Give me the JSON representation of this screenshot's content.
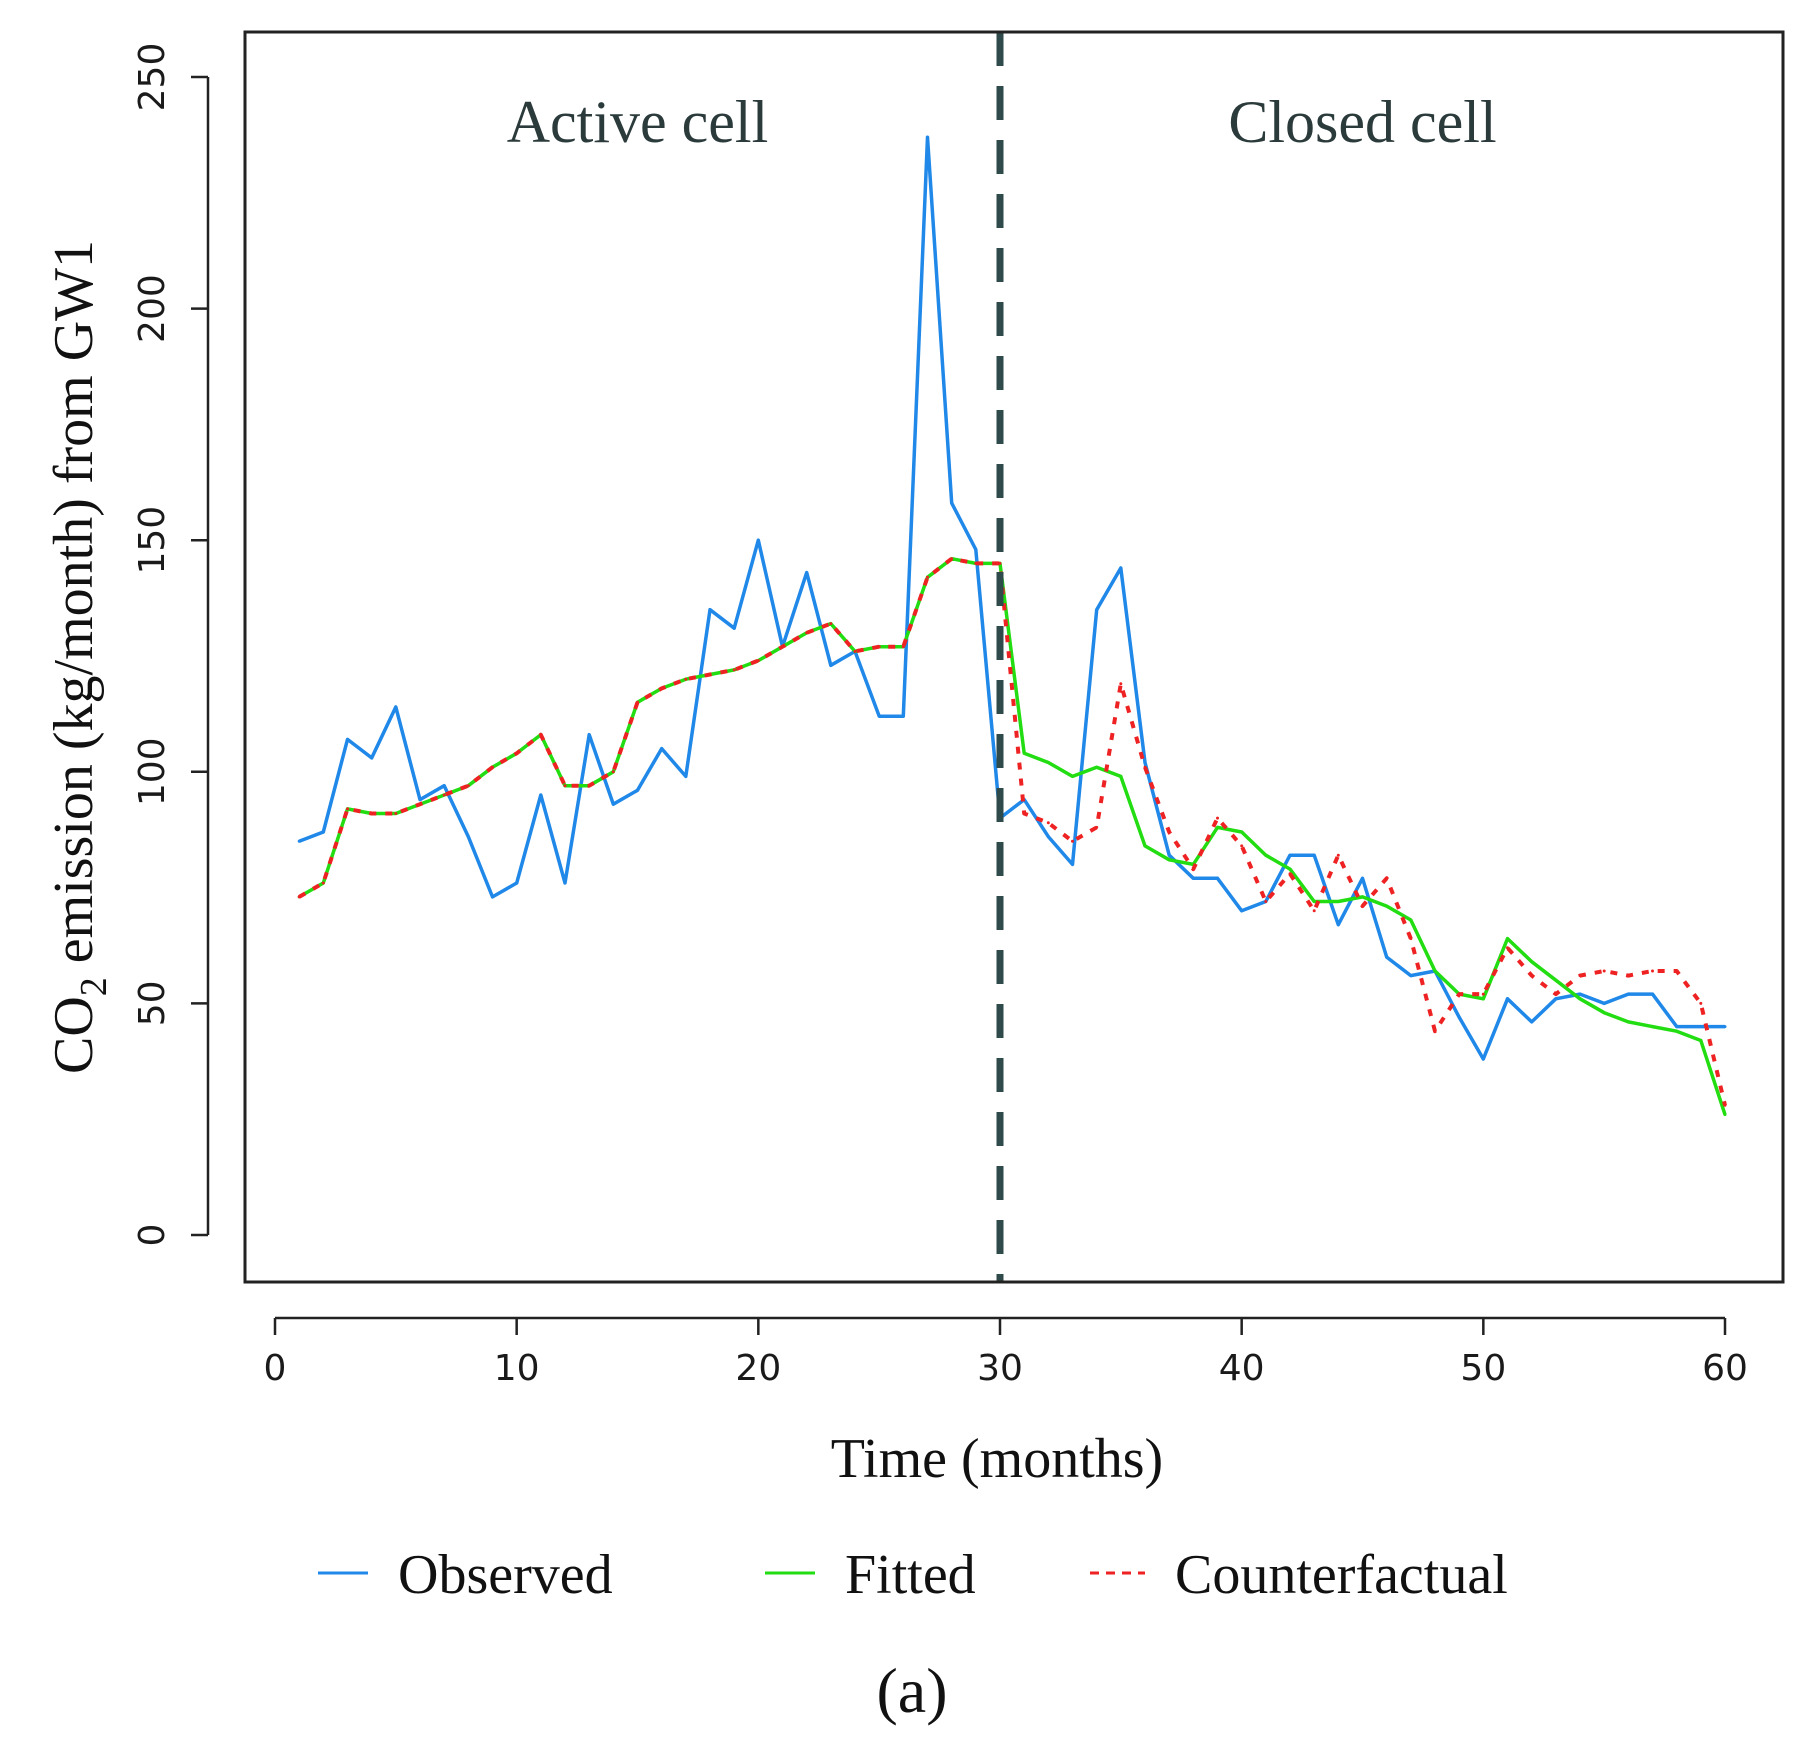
{
  "chart_data": {
    "type": "line",
    "title": "",
    "xlabel": "Time (months)",
    "ylabel": {
      "prefix": "CO",
      "subscript": "2",
      "suffix": " emission (kg/month) from GW1"
    },
    "xlim": [
      0,
      60
    ],
    "ylim": [
      0,
      250
    ],
    "xticks": [
      0,
      10,
      20,
      30,
      40,
      50,
      60
    ],
    "yticks": [
      0,
      50,
      100,
      150,
      200,
      250
    ],
    "grid": false,
    "intervention": {
      "x": 30,
      "style": "dashed",
      "color": "#2f4a4a"
    },
    "regions": [
      {
        "label": "Active cell",
        "x": 15
      },
      {
        "label": "Closed cell",
        "x": 45
      }
    ],
    "x": [
      1,
      2,
      3,
      4,
      5,
      6,
      7,
      8,
      9,
      10,
      11,
      12,
      13,
      14,
      15,
      16,
      17,
      18,
      19,
      20,
      21,
      22,
      23,
      24,
      25,
      26,
      27,
      28,
      29,
      30,
      31,
      32,
      33,
      34,
      35,
      36,
      37,
      38,
      39,
      40,
      41,
      42,
      43,
      44,
      45,
      46,
      47,
      48,
      49,
      50,
      51,
      52,
      53,
      54,
      55,
      56,
      57,
      58,
      59,
      60
    ],
    "series": [
      {
        "name": "Observed",
        "color": "#1f88e8",
        "style": "solid",
        "values": [
          85,
          87,
          107,
          103,
          114,
          94,
          97,
          86,
          73,
          76,
          95,
          76,
          108,
          93,
          96,
          105,
          99,
          135,
          131,
          150,
          127,
          143,
          123,
          126,
          112,
          112,
          237,
          158,
          148,
          90,
          94,
          86,
          80,
          135,
          144,
          102,
          82,
          77,
          77,
          70,
          72,
          82,
          82,
          67,
          77,
          60,
          56,
          57,
          47,
          38,
          51,
          46,
          51,
          52,
          50,
          52,
          52,
          45,
          45,
          45
        ]
      },
      {
        "name": "Fitted",
        "color": "#22dd11",
        "style": "solid",
        "values": [
          73,
          76,
          92,
          91,
          91,
          93,
          95,
          97,
          101,
          104,
          108,
          97,
          97,
          100,
          115,
          118,
          120,
          121,
          122,
          124,
          127,
          130,
          132,
          126,
          127,
          127,
          142,
          146,
          145,
          145,
          104,
          102,
          99,
          101,
          99,
          84,
          81,
          80,
          88,
          87,
          82,
          79,
          72,
          72,
          73,
          71,
          68,
          57,
          52,
          51,
          64,
          59,
          55,
          51,
          48,
          46,
          45,
          44,
          42,
          26
        ]
      },
      {
        "name": "Counterfactual",
        "color": "#ee2222",
        "style": "dotted",
        "values": [
          73,
          76,
          92,
          91,
          91,
          93,
          95,
          97,
          101,
          104,
          108,
          97,
          97,
          100,
          115,
          118,
          120,
          121,
          122,
          124,
          127,
          130,
          132,
          126,
          127,
          127,
          142,
          146,
          145,
          145,
          91,
          89,
          85,
          88,
          119,
          101,
          87,
          79,
          90,
          84,
          72,
          78,
          70,
          82,
          71,
          77,
          64,
          44,
          52,
          52,
          62,
          56,
          52,
          56,
          57,
          56,
          57,
          57,
          50,
          28
        ]
      }
    ],
    "legend": {
      "placement": "bottom",
      "entries": [
        "Observed",
        "Fitted",
        "Counterfactual"
      ]
    },
    "panel_label": "(a)"
  }
}
